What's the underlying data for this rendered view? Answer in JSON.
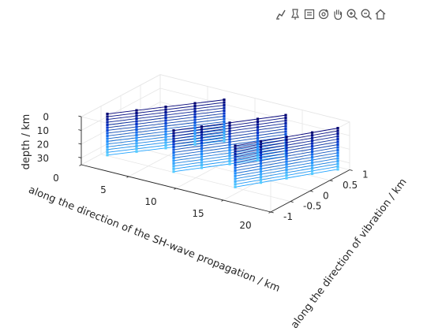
{
  "toolbar": {
    "buttons": [
      {
        "name": "brush-data-icon"
      },
      {
        "name": "data-tips-icon"
      },
      {
        "name": "save-icon"
      },
      {
        "name": "rotate-3d-icon"
      },
      {
        "name": "pan-hand-icon"
      },
      {
        "name": "zoom-in-icon"
      },
      {
        "name": "zoom-out-icon"
      },
      {
        "name": "home-icon"
      }
    ]
  },
  "chart_data": {
    "type": "line",
    "projection": "3d",
    "xlabel": "along the direction of the SH-wave propagation / km",
    "ylabel": "along the direction of vibration / km",
    "zlabel": "depth / km",
    "xlim": [
      0,
      20
    ],
    "ylim": [
      -1,
      1
    ],
    "zlim": [
      0,
      35
    ],
    "z_reversed": true,
    "grid": true,
    "box": true,
    "xticks": [
      "0",
      "5",
      "10",
      "15",
      "20"
    ],
    "yticks": [
      "-1",
      "-0.5",
      "0",
      "0.5",
      "1"
    ],
    "zticks": [
      "0",
      "10",
      "20",
      "30"
    ],
    "line_color_start": "#02027a",
    "line_color_end": "#1ea2ff",
    "marker_colormap": [
      "#000070",
      "#0033cc",
      "#1f8fff",
      "#55ccff"
    ],
    "series": [
      {
        "x": [
          1.5,
          8
        ],
        "y": [
          -0.7,
          0.7
        ],
        "depths": [
          0,
          2,
          4,
          6,
          8,
          10,
          12,
          14,
          16,
          18,
          20,
          22,
          24,
          26,
          28,
          30
        ],
        "receivers_per_profile": 5
      },
      {
        "x": [
          8.5,
          14.5
        ],
        "y": [
          -0.7,
          0.7
        ],
        "depths": [
          0,
          2,
          4,
          6,
          8,
          10,
          12,
          14,
          16,
          18,
          20,
          22,
          24,
          26,
          28,
          30
        ],
        "receivers_per_profile": 5
      },
      {
        "x": [
          15,
          20
        ],
        "y": [
          -0.7,
          0.7
        ],
        "depths": [
          0,
          2,
          4,
          6,
          8,
          10,
          12,
          14,
          16,
          18,
          20,
          22,
          24,
          26,
          28,
          30
        ],
        "receivers_per_profile": 5
      }
    ]
  }
}
